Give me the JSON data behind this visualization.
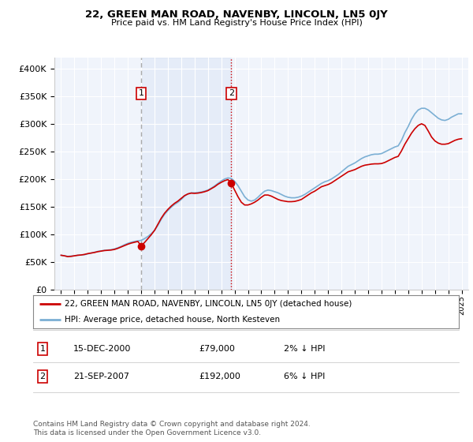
{
  "title": "22, GREEN MAN ROAD, NAVENBY, LINCOLN, LN5 0JY",
  "subtitle": "Price paid vs. HM Land Registry's House Price Index (HPI)",
  "legend_line1": "22, GREEN MAN ROAD, NAVENBY, LINCOLN, LN5 0JY (detached house)",
  "legend_line2": "HPI: Average price, detached house, North Kesteven",
  "footnote": "Contains HM Land Registry data © Crown copyright and database right 2024.\nThis data is licensed under the Open Government Licence v3.0.",
  "annotation1_date": "15-DEC-2000",
  "annotation1_price": "£79,000",
  "annotation1_hpi": "2% ↓ HPI",
  "annotation2_date": "21-SEP-2007",
  "annotation2_price": "£192,000",
  "annotation2_hpi": "6% ↓ HPI",
  "hpi_color": "#7bafd4",
  "price_color": "#cc0000",
  "background_color": "#ffffff",
  "plot_bg_color": "#f0f4fb",
  "grid_color": "#ffffff",
  "vline1_x": 2001.0,
  "vline2_x": 2007.75,
  "point1_x": 2001.0,
  "point1_y": 79000,
  "point2_x": 2007.75,
  "point2_y": 192000,
  "ylim": [
    0,
    420000
  ],
  "xlim_start": 1994.5,
  "xlim_end": 2025.5,
  "yticks": [
    0,
    50000,
    100000,
    150000,
    200000,
    250000,
    300000,
    350000,
    400000
  ],
  "xticks": [
    1995,
    1996,
    1997,
    1998,
    1999,
    2000,
    2001,
    2002,
    2003,
    2004,
    2005,
    2006,
    2007,
    2008,
    2009,
    2010,
    2011,
    2012,
    2013,
    2014,
    2015,
    2016,
    2017,
    2018,
    2019,
    2020,
    2021,
    2022,
    2023,
    2024,
    2025
  ],
  "hpi_data": [
    [
      1995.0,
      62000
    ],
    [
      1995.25,
      61000
    ],
    [
      1995.5,
      60000
    ],
    [
      1995.75,
      60500
    ],
    [
      1996.0,
      61000
    ],
    [
      1996.25,
      62000
    ],
    [
      1996.5,
      62500
    ],
    [
      1996.75,
      63000
    ],
    [
      1997.0,
      64500
    ],
    [
      1997.25,
      66000
    ],
    [
      1997.5,
      67500
    ],
    [
      1997.75,
      69000
    ],
    [
      1998.0,
      70000
    ],
    [
      1998.25,
      71000
    ],
    [
      1998.5,
      71500
    ],
    [
      1998.75,
      72000
    ],
    [
      1999.0,
      73500
    ],
    [
      1999.25,
      75500
    ],
    [
      1999.5,
      78000
    ],
    [
      1999.75,
      81000
    ],
    [
      2000.0,
      83500
    ],
    [
      2000.25,
      85500
    ],
    [
      2000.5,
      87000
    ],
    [
      2000.75,
      88000
    ],
    [
      2001.0,
      89000
    ],
    [
      2001.25,
      92000
    ],
    [
      2001.5,
      96000
    ],
    [
      2001.75,
      101000
    ],
    [
      2002.0,
      107000
    ],
    [
      2002.25,
      116000
    ],
    [
      2002.5,
      127000
    ],
    [
      2002.75,
      136000
    ],
    [
      2003.0,
      143000
    ],
    [
      2003.25,
      149000
    ],
    [
      2003.5,
      154000
    ],
    [
      2003.75,
      158000
    ],
    [
      2004.0,
      163000
    ],
    [
      2004.25,
      169000
    ],
    [
      2004.5,
      173000
    ],
    [
      2004.75,
      175000
    ],
    [
      2005.0,
      175000
    ],
    [
      2005.25,
      175500
    ],
    [
      2005.5,
      176500
    ],
    [
      2005.75,
      178000
    ],
    [
      2006.0,
      180000
    ],
    [
      2006.25,
      183500
    ],
    [
      2006.5,
      187500
    ],
    [
      2006.75,
      192000
    ],
    [
      2007.0,
      196500
    ],
    [
      2007.25,
      200000
    ],
    [
      2007.5,
      202000
    ],
    [
      2007.75,
      201000
    ],
    [
      2008.0,
      196000
    ],
    [
      2008.25,
      188000
    ],
    [
      2008.5,
      178000
    ],
    [
      2008.75,
      168000
    ],
    [
      2009.0,
      162000
    ],
    [
      2009.25,
      160000
    ],
    [
      2009.5,
      162000
    ],
    [
      2009.75,
      167000
    ],
    [
      2010.0,
      173000
    ],
    [
      2010.25,
      178000
    ],
    [
      2010.5,
      180000
    ],
    [
      2010.75,
      179000
    ],
    [
      2011.0,
      177000
    ],
    [
      2011.25,
      175000
    ],
    [
      2011.5,
      172000
    ],
    [
      2011.75,
      169000
    ],
    [
      2012.0,
      167000
    ],
    [
      2012.25,
      166000
    ],
    [
      2012.5,
      166000
    ],
    [
      2012.75,
      167000
    ],
    [
      2013.0,
      169000
    ],
    [
      2013.25,
      172000
    ],
    [
      2013.5,
      176000
    ],
    [
      2013.75,
      180000
    ],
    [
      2014.0,
      184000
    ],
    [
      2014.25,
      188000
    ],
    [
      2014.5,
      192000
    ],
    [
      2014.75,
      195000
    ],
    [
      2015.0,
      197000
    ],
    [
      2015.25,
      200000
    ],
    [
      2015.5,
      204000
    ],
    [
      2015.75,
      208000
    ],
    [
      2016.0,
      213000
    ],
    [
      2016.25,
      218000
    ],
    [
      2016.5,
      223000
    ],
    [
      2016.75,
      226000
    ],
    [
      2017.0,
      229000
    ],
    [
      2017.25,
      233000
    ],
    [
      2017.5,
      237000
    ],
    [
      2017.75,
      240000
    ],
    [
      2018.0,
      242000
    ],
    [
      2018.25,
      244000
    ],
    [
      2018.5,
      245000
    ],
    [
      2018.75,
      245000
    ],
    [
      2019.0,
      246000
    ],
    [
      2019.25,
      249000
    ],
    [
      2019.5,
      252000
    ],
    [
      2019.75,
      255000
    ],
    [
      2020.0,
      258000
    ],
    [
      2020.25,
      260000
    ],
    [
      2020.5,
      270000
    ],
    [
      2020.75,
      284000
    ],
    [
      2021.0,
      295000
    ],
    [
      2021.25,
      308000
    ],
    [
      2021.5,
      318000
    ],
    [
      2021.75,
      325000
    ],
    [
      2022.0,
      328000
    ],
    [
      2022.25,
      328000
    ],
    [
      2022.5,
      325000
    ],
    [
      2022.75,
      320000
    ],
    [
      2023.0,
      315000
    ],
    [
      2023.25,
      310000
    ],
    [
      2023.5,
      307000
    ],
    [
      2023.75,
      306000
    ],
    [
      2024.0,
      308000
    ],
    [
      2024.25,
      312000
    ],
    [
      2024.5,
      315000
    ],
    [
      2024.75,
      318000
    ],
    [
      2025.0,
      318000
    ]
  ],
  "price_data": [
    [
      1995.0,
      62000
    ],
    [
      1995.25,
      61000
    ],
    [
      1995.5,
      59500
    ],
    [
      1995.75,
      60000
    ],
    [
      1996.0,
      61000
    ],
    [
      1996.25,
      62000
    ],
    [
      1996.5,
      62500
    ],
    [
      1996.75,
      63500
    ],
    [
      1997.0,
      65000
    ],
    [
      1997.25,
      66000
    ],
    [
      1997.5,
      67000
    ],
    [
      1997.75,
      68500
    ],
    [
      1998.0,
      69500
    ],
    [
      1998.25,
      70500
    ],
    [
      1998.5,
      71000
    ],
    [
      1998.75,
      71500
    ],
    [
      1999.0,
      72500
    ],
    [
      1999.25,
      74500
    ],
    [
      1999.5,
      77000
    ],
    [
      1999.75,
      79500
    ],
    [
      2000.0,
      82000
    ],
    [
      2000.25,
      84000
    ],
    [
      2000.5,
      85500
    ],
    [
      2000.75,
      87000
    ],
    [
      2001.0,
      79000
    ],
    [
      2001.25,
      85000
    ],
    [
      2001.5,
      92000
    ],
    [
      2001.75,
      99000
    ],
    [
      2002.0,
      107000
    ],
    [
      2002.25,
      118000
    ],
    [
      2002.5,
      129000
    ],
    [
      2002.75,
      138000
    ],
    [
      2003.0,
      145000
    ],
    [
      2003.25,
      151000
    ],
    [
      2003.5,
      156000
    ],
    [
      2003.75,
      160000
    ],
    [
      2004.0,
      165000
    ],
    [
      2004.25,
      170000
    ],
    [
      2004.5,
      173000
    ],
    [
      2004.75,
      174500
    ],
    [
      2005.0,
      174000
    ],
    [
      2005.25,
      174500
    ],
    [
      2005.5,
      175500
    ],
    [
      2005.75,
      177000
    ],
    [
      2006.0,
      179000
    ],
    [
      2006.25,
      182500
    ],
    [
      2006.5,
      186000
    ],
    [
      2006.75,
      190500
    ],
    [
      2007.0,
      194000
    ],
    [
      2007.25,
      197000
    ],
    [
      2007.5,
      199000
    ],
    [
      2007.75,
      192000
    ],
    [
      2008.0,
      180000
    ],
    [
      2008.25,
      168000
    ],
    [
      2008.5,
      158000
    ],
    [
      2008.75,
      153000
    ],
    [
      2009.0,
      153000
    ],
    [
      2009.25,
      155000
    ],
    [
      2009.5,
      158000
    ],
    [
      2009.75,
      162000
    ],
    [
      2010.0,
      167000
    ],
    [
      2010.25,
      171000
    ],
    [
      2010.5,
      171000
    ],
    [
      2010.75,
      169000
    ],
    [
      2011.0,
      166000
    ],
    [
      2011.25,
      163000
    ],
    [
      2011.5,
      161000
    ],
    [
      2011.75,
      160000
    ],
    [
      2012.0,
      159000
    ],
    [
      2012.25,
      159000
    ],
    [
      2012.5,
      159500
    ],
    [
      2012.75,
      161000
    ],
    [
      2013.0,
      163000
    ],
    [
      2013.25,
      167000
    ],
    [
      2013.5,
      171000
    ],
    [
      2013.75,
      175000
    ],
    [
      2014.0,
      178000
    ],
    [
      2014.25,
      182000
    ],
    [
      2014.5,
      186000
    ],
    [
      2014.75,
      188000
    ],
    [
      2015.0,
      190000
    ],
    [
      2015.25,
      193000
    ],
    [
      2015.5,
      197000
    ],
    [
      2015.75,
      201000
    ],
    [
      2016.0,
      205000
    ],
    [
      2016.25,
      209000
    ],
    [
      2016.5,
      213000
    ],
    [
      2016.75,
      215000
    ],
    [
      2017.0,
      217000
    ],
    [
      2017.25,
      220000
    ],
    [
      2017.5,
      223000
    ],
    [
      2017.75,
      225000
    ],
    [
      2018.0,
      226000
    ],
    [
      2018.25,
      227000
    ],
    [
      2018.5,
      227500
    ],
    [
      2018.75,
      227500
    ],
    [
      2019.0,
      228000
    ],
    [
      2019.25,
      230000
    ],
    [
      2019.5,
      233000
    ],
    [
      2019.75,
      236000
    ],
    [
      2020.0,
      239000
    ],
    [
      2020.25,
      241000
    ],
    [
      2020.5,
      251000
    ],
    [
      2020.75,
      263000
    ],
    [
      2021.0,
      273000
    ],
    [
      2021.25,
      283000
    ],
    [
      2021.5,
      291000
    ],
    [
      2021.75,
      297000
    ],
    [
      2022.0,
      300000
    ],
    [
      2022.25,
      297000
    ],
    [
      2022.5,
      287000
    ],
    [
      2022.75,
      276000
    ],
    [
      2023.0,
      269000
    ],
    [
      2023.25,
      265000
    ],
    [
      2023.5,
      263000
    ],
    [
      2023.75,
      263000
    ],
    [
      2024.0,
      264000
    ],
    [
      2024.25,
      267000
    ],
    [
      2024.5,
      270000
    ],
    [
      2024.75,
      272000
    ],
    [
      2025.0,
      273000
    ]
  ]
}
